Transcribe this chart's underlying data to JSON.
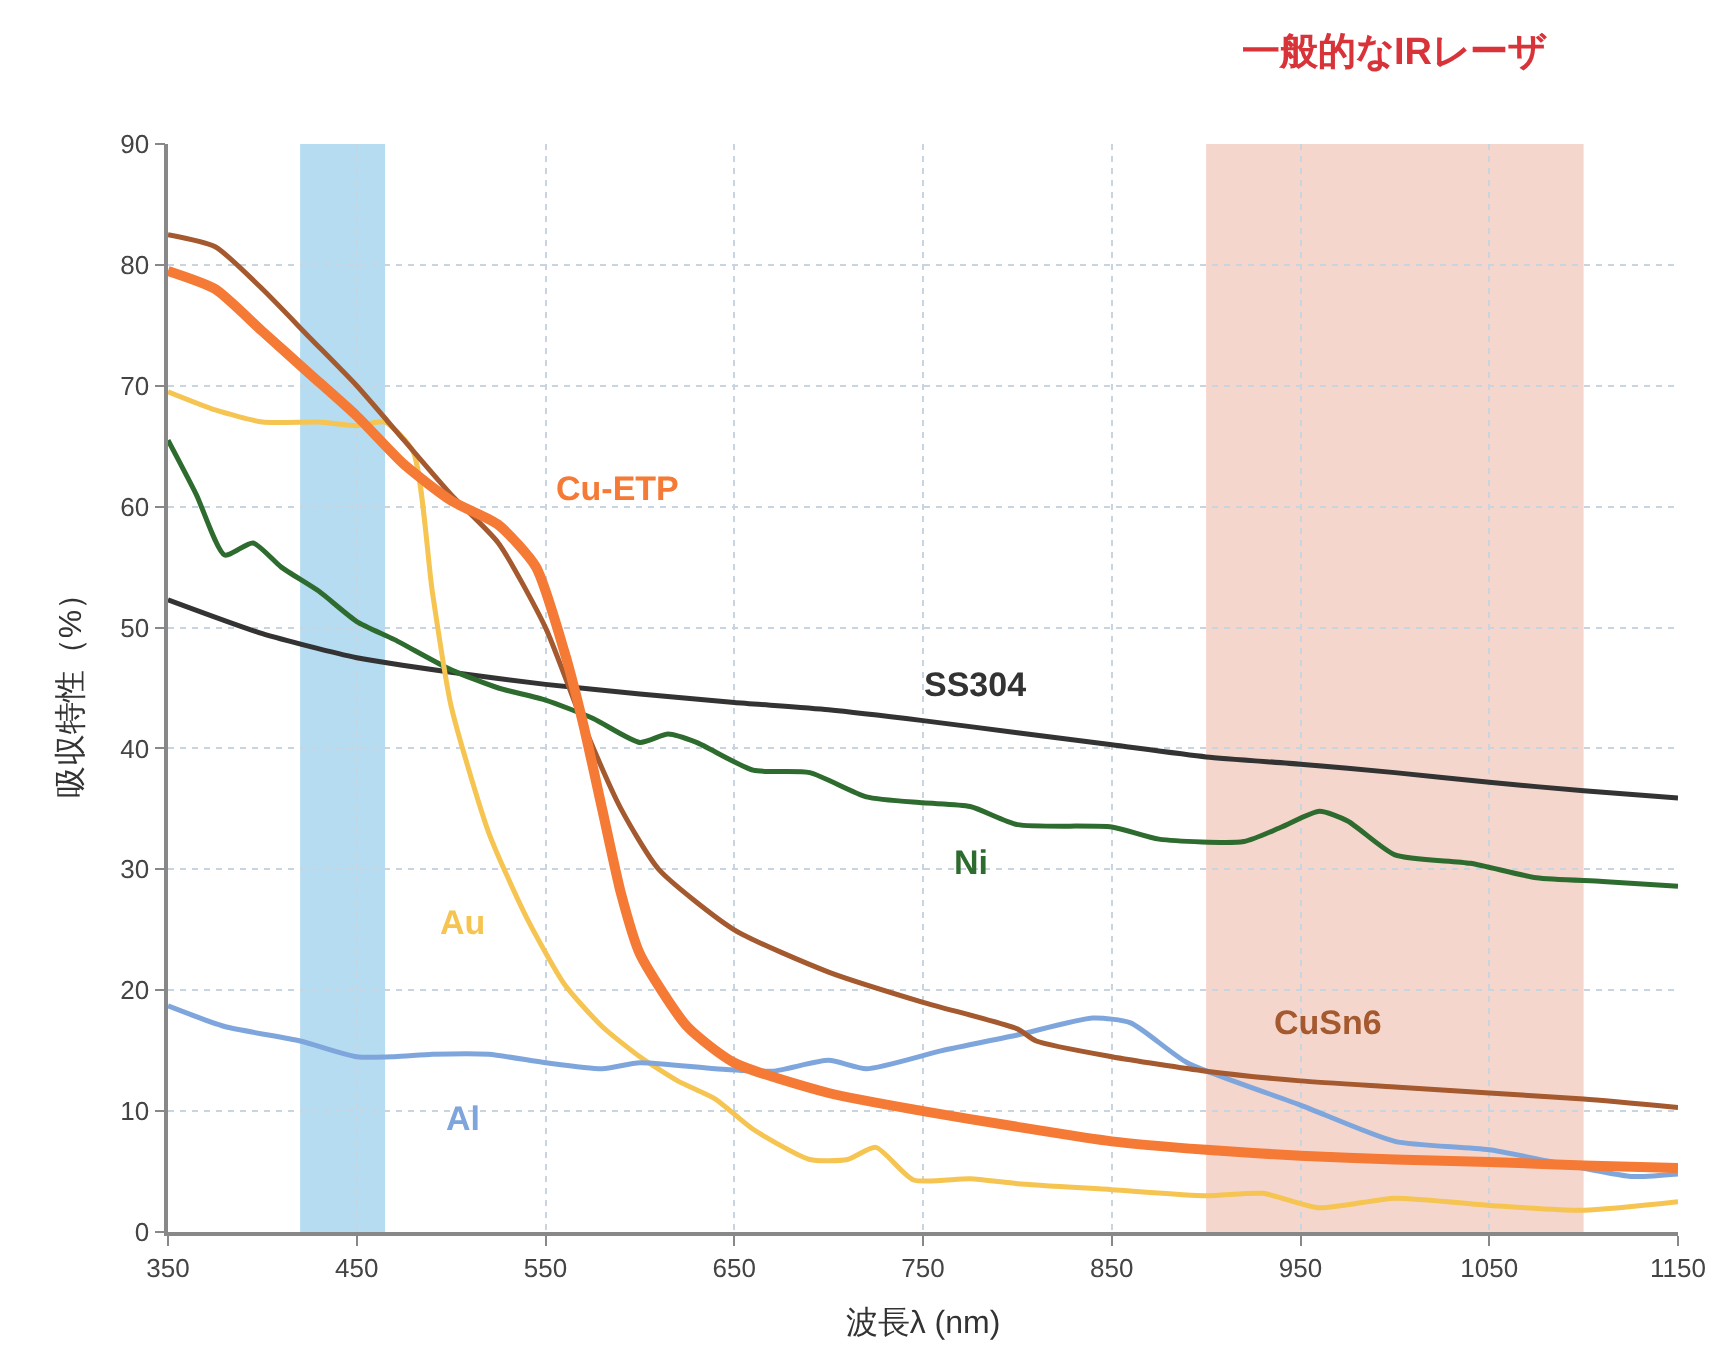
{
  "chart_data": {
    "type": "line",
    "xlabel": "波長λ (nm)",
    "ylabel": "吸収特性（%）",
    "xlim": [
      350,
      1150
    ],
    "ylim": [
      0,
      90
    ],
    "xticks": [
      350,
      450,
      550,
      650,
      750,
      850,
      950,
      1050,
      1150
    ],
    "yticks": [
      0,
      10,
      20,
      30,
      40,
      50,
      60,
      70,
      80,
      90
    ],
    "grid": true,
    "legend": false,
    "marker": "none",
    "line_style": "solid",
    "bands": [
      {
        "axis": "x",
        "from": 420,
        "to": 465,
        "color": "#b5dcf1"
      },
      {
        "axis": "x",
        "from": 900,
        "to": 1100,
        "color": "#f5d6cd",
        "label": "一般的なIRレーザ"
      }
    ],
    "series": [
      {
        "name": "SS304",
        "color": "#333333",
        "x": [
          350,
          400,
          450,
          500,
          550,
          600,
          650,
          700,
          750,
          800,
          850,
          900,
          950,
          1000,
          1050,
          1100,
          1150
        ],
        "values": [
          52.3,
          49.5,
          47.5,
          46.3,
          45.3,
          44.5,
          43.8,
          43.2,
          42.3,
          41.3,
          40.3,
          39.3,
          38.7,
          38.0,
          37.2,
          36.5,
          35.9
        ]
      },
      {
        "name": "Ni",
        "color": "#2e6b2e",
        "x": [
          350,
          365,
          380,
          395,
          410,
          430,
          450,
          470,
          500,
          525,
          550,
          575,
          600,
          615,
          630,
          660,
          690,
          720,
          750,
          775,
          800,
          850,
          875,
          920,
          940,
          960,
          975,
          1000,
          1040,
          1075,
          1110,
          1150
        ],
        "values": [
          65.5,
          61,
          56,
          57,
          55,
          53,
          50.5,
          49,
          46.5,
          45,
          44,
          42.5,
          40.5,
          41.2,
          40.5,
          38.2,
          38,
          36,
          35.5,
          35.2,
          33.7,
          33.5,
          32.5,
          32.3,
          33.5,
          34.8,
          34,
          31.2,
          30.5,
          29.3,
          29,
          28.6
        ]
      },
      {
        "name": "Au",
        "color": "#f5c451",
        "x": [
          350,
          375,
          400,
          430,
          450,
          465,
          480,
          490,
          500,
          520,
          540,
          560,
          580,
          600,
          620,
          640,
          660,
          690,
          710,
          725,
          745,
          775,
          800,
          850,
          900,
          930,
          960,
          1000,
          1050,
          1100,
          1150
        ],
        "values": [
          69.5,
          68,
          67,
          67,
          66.7,
          67,
          64.5,
          53,
          43.5,
          33,
          26,
          20.5,
          17,
          14.5,
          12.5,
          11,
          8.5,
          6,
          6,
          7,
          4.3,
          4.4,
          4,
          3.5,
          3,
          3.2,
          2,
          2.8,
          2.2,
          1.8,
          2.5
        ]
      },
      {
        "name": "Al",
        "color": "#7ea6dc",
        "x": [
          350,
          380,
          420,
          450,
          470,
          490,
          520,
          550,
          580,
          600,
          640,
          670,
          700,
          720,
          760,
          800,
          840,
          860,
          890,
          950,
          1000,
          1050,
          1125,
          1150
        ],
        "values": [
          18.7,
          17,
          15.8,
          14.5,
          14.5,
          14.7,
          14.7,
          14,
          13.5,
          14,
          13.5,
          13.3,
          14.2,
          13.5,
          15,
          16.3,
          17.7,
          17.3,
          14,
          10.5,
          7.5,
          6.8,
          4.6,
          4.8
        ]
      },
      {
        "name": "CuSn6",
        "color": "#a4592e",
        "x": [
          350,
          375,
          400,
          425,
          450,
          475,
          500,
          525,
          550,
          570,
          590,
          610,
          650,
          700,
          750,
          800,
          810,
          850,
          900,
          950,
          1000,
          1050,
          1100,
          1150
        ],
        "values": [
          82.5,
          81.5,
          78,
          74,
          70,
          65.5,
          61,
          57,
          50,
          42,
          35,
          30,
          25,
          21.5,
          19,
          16.8,
          15.8,
          14.5,
          13.3,
          12.5,
          12,
          11.5,
          11,
          10.3
        ]
      },
      {
        "name": "Cu-ETP",
        "color": "#f47a35",
        "x": [
          350,
          375,
          400,
          425,
          450,
          475,
          500,
          525,
          545,
          560,
          570,
          580,
          590,
          600,
          625,
          650,
          700,
          750,
          800,
          850,
          900,
          950,
          1000,
          1050,
          1100,
          1150
        ],
        "values": [
          79.5,
          78,
          74.5,
          71,
          67.5,
          63.5,
          60.5,
          58.5,
          55,
          48,
          42,
          35,
          28,
          23,
          17,
          14,
          11.5,
          10,
          8.7,
          7.5,
          6.8,
          6.3,
          6,
          5.8,
          5.5,
          5.3
        ]
      }
    ]
  }
}
